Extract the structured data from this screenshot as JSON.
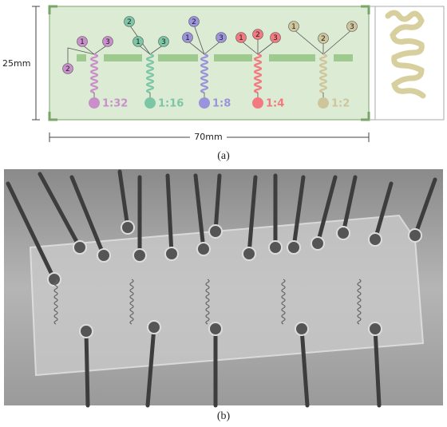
{
  "panel_a": {
    "height_label": "25mm",
    "width_label": "70mm",
    "caption": "(a)",
    "units": [
      {
        "inlets": [
          "1",
          "2",
          "3"
        ],
        "ratio": "1:32",
        "color": "#c98fcb"
      },
      {
        "inlets": [
          "1",
          "2",
          "3"
        ],
        "ratio": "1:16",
        "color": "#7cc6a6"
      },
      {
        "inlets": [
          "1",
          "2",
          "3"
        ],
        "ratio": "1:8",
        "color": "#9b93dc"
      },
      {
        "inlets": [
          "1",
          "2",
          "3"
        ],
        "ratio": "1:4",
        "color": "#f2797f"
      },
      {
        "inlets": [
          "1",
          "2",
          "3"
        ],
        "ratio": "1:2",
        "color": "#cfc59c"
      }
    ]
  },
  "panel_b": {
    "caption": "(b)"
  }
}
